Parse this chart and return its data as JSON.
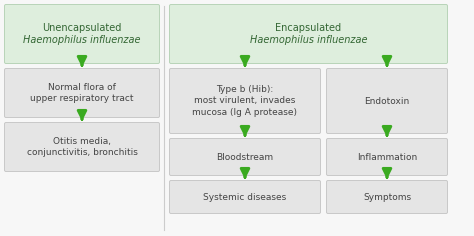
{
  "background_color": "#f7f7f7",
  "header_bg": "#deeedd",
  "box_bg": "#e5e5e5",
  "header_border": "#b8d4b8",
  "box_border": "#c8c8c8",
  "arrow_color": "#3aaa20",
  "text_color": "#444444",
  "header_text_color": "#336633",
  "figsize": [
    4.74,
    2.36
  ],
  "dpi": 100,
  "left_header": "Unencapsulated\nHaemophilus influenzae",
  "enc_header": "Encapsulated\nHaemophilus influenzae",
  "left_boxes": [
    "Normal flora of\nupper respiratory tract",
    "Otitis media,\nconjunctivitis, bronchitis"
  ],
  "mid_boxes": [
    "Type b (Hib):\nmost virulent, invades\nmucosa (Ig A protease)",
    "Bloodstream",
    "Systemic diseases"
  ],
  "right_boxes": [
    "Endotoxin",
    "Inflammation",
    "Symptoms"
  ]
}
